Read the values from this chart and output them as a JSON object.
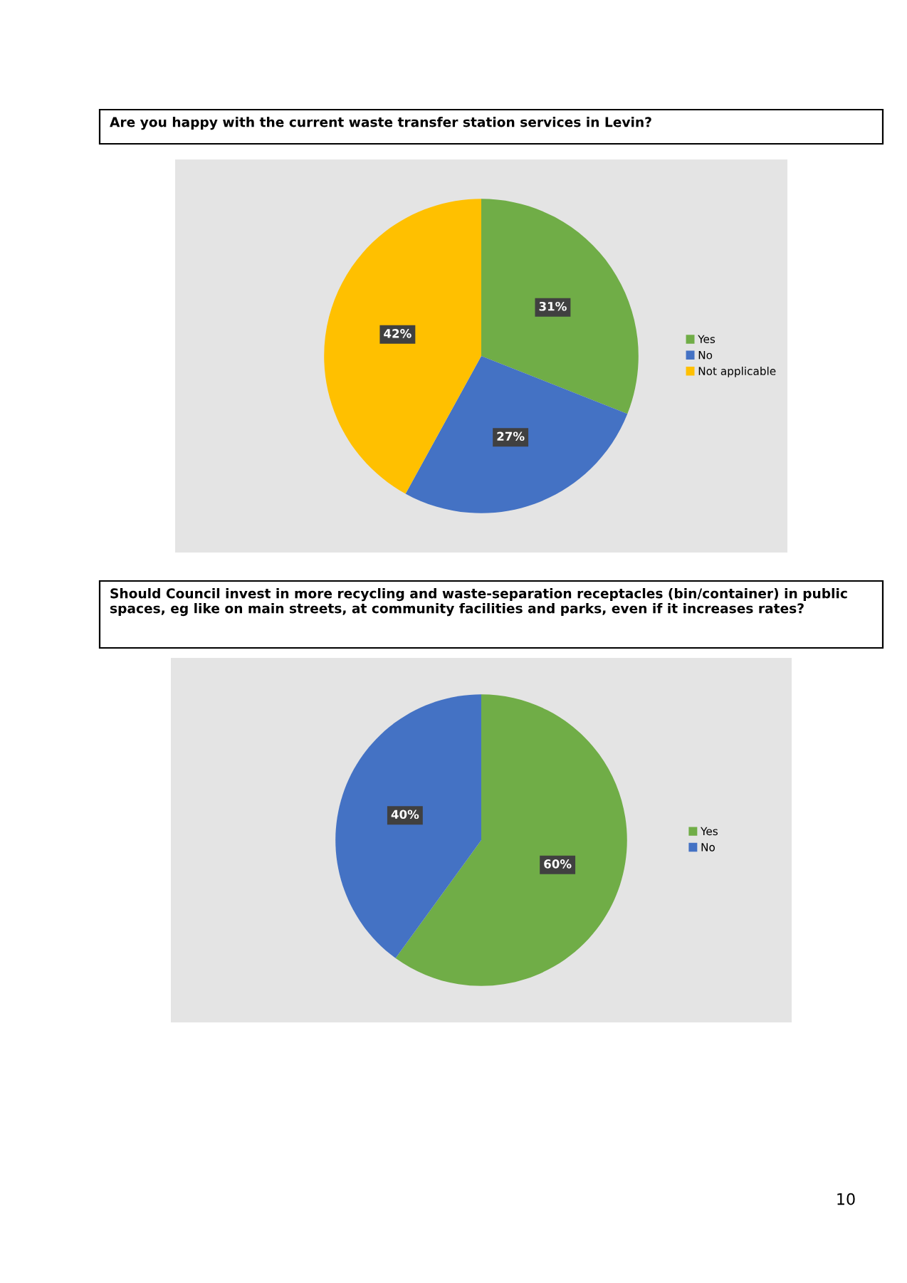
{
  "chart_data": [
    {
      "type": "pie",
      "title": "Are you happy with the current waste transfer station services in Levin?",
      "categories": [
        "Yes",
        "No",
        "Not applicable"
      ],
      "values": [
        31,
        27,
        42
      ],
      "colors": [
        "#70ad47",
        "#4472c4",
        "#ffc000"
      ],
      "value_labels": [
        "31%",
        "27%",
        "42%"
      ],
      "legend": "right"
    },
    {
      "type": "pie",
      "title": "Should Council invest in more recycling and waste-separation receptacles (bin/container) in public spaces, eg like on main streets, at community facilities and parks, even if it increases rates?",
      "categories": [
        "Yes",
        "No"
      ],
      "values": [
        60,
        40
      ],
      "colors": [
        "#70ad47",
        "#4472c4"
      ],
      "value_labels": [
        "60%",
        "40%"
      ],
      "legend": "right",
      "annotations": [
        "10"
      ]
    }
  ]
}
